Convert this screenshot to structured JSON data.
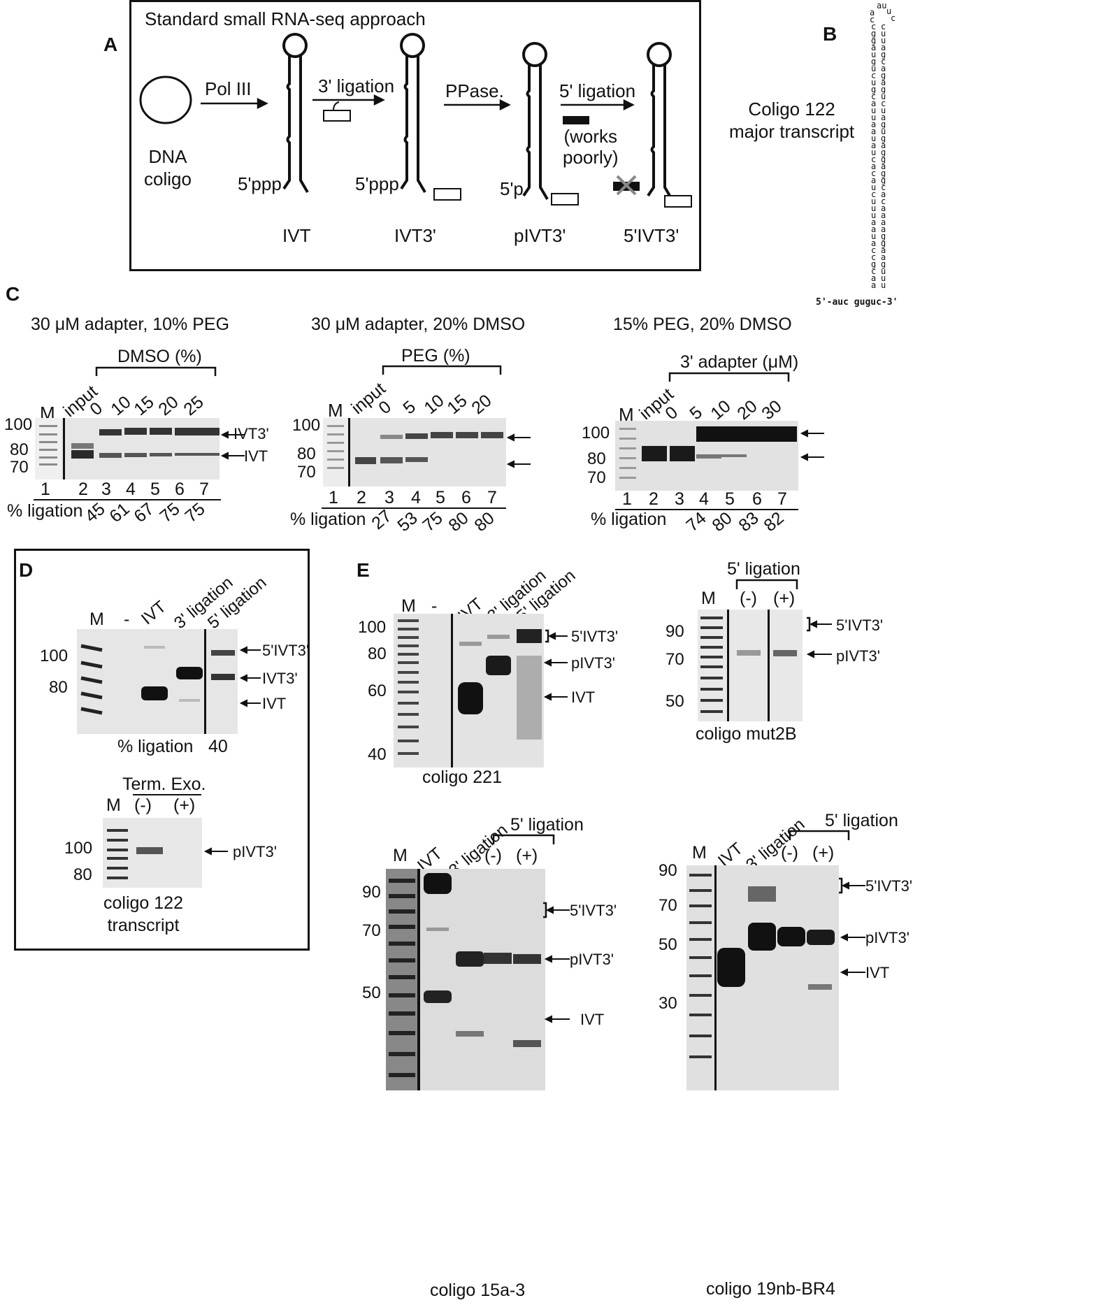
{
  "panelA": {
    "letter": "A",
    "title": "Standard small RNA-seq approach",
    "dna_coligo": "DNA\ncoligo",
    "pol3": "Pol III",
    "lig3": "3' ligation",
    "ppase": "PPase.",
    "lig5": "5' ligation",
    "works_poorly": "(works\npoorly)",
    "ppp1": "5'ppp",
    "ppp2": "5'ppp",
    "p3": "5'p",
    "labels": [
      "IVT",
      "IVT3'",
      "pIVT3'",
      "5'IVT3'"
    ]
  },
  "panelB": {
    "letter": "B",
    "title": "Coligo 122\nmajor transcript",
    "seq_bottom": "5'-auc guguc-3'"
  },
  "panelC": {
    "letter": "C",
    "gels": [
      {
        "title": "30 μM adapter, 10% PEG",
        "bracket": "DMSO (%)",
        "lanes_top": [
          "M",
          "input",
          "0",
          "10",
          "15",
          "20",
          "25"
        ],
        "markers": [
          "100",
          "80",
          "70"
        ],
        "lane_nums": [
          "1",
          "2",
          "3",
          "4",
          "5",
          "6",
          "7"
        ],
        "pct_label": "% ligation",
        "pct": [
          "45",
          "61",
          "67",
          "75",
          "75"
        ],
        "arrows": [
          "IVT3'",
          "IVT"
        ]
      },
      {
        "title": "30 μM adapter, 20% DMSO",
        "bracket": "PEG (%)",
        "lanes_top": [
          "M",
          "input",
          "0",
          "5",
          "10",
          "15",
          "20"
        ],
        "markers": [
          "100",
          "80",
          "70"
        ],
        "lane_nums": [
          "1",
          "2",
          "3",
          "4",
          "5",
          "6",
          "7"
        ],
        "pct_label": "% ligation",
        "pct": [
          "27",
          "53",
          "75",
          "80",
          "80"
        ]
      },
      {
        "title": "15% PEG, 20% DMSO",
        "bracket": "3' adapter (μM)",
        "lanes_top": [
          "M",
          "input",
          "0",
          "5",
          "10",
          "20",
          "30"
        ],
        "markers": [
          "100",
          "80",
          "70"
        ],
        "lane_nums": [
          "1",
          "2",
          "3",
          "4",
          "5",
          "6",
          "7"
        ],
        "pct_label": "% ligation",
        "pct": [
          "74",
          "80",
          "83",
          "82"
        ]
      }
    ]
  },
  "panelD": {
    "letter": "D",
    "lanes": [
      "M",
      "-",
      "IVT",
      "3' ligation",
      "5' ligation"
    ],
    "markers": [
      "100",
      "80"
    ],
    "arrows": [
      "5'IVT3'",
      "IVT3'",
      "IVT"
    ],
    "pct_label": "% ligation",
    "pct": "40",
    "exo_title": "Term. Exo.",
    "exo_lanes": [
      "M",
      "(-)",
      "(+)"
    ],
    "exo_markers": [
      "100",
      "80"
    ],
    "exo_arrow": "pIVT3'",
    "caption": "coligo 122\ntranscript"
  },
  "panelE": {
    "letter": "E",
    "gel221": {
      "lanes": [
        "M",
        "-",
        "IVT",
        "3' ligation",
        "5' ligation"
      ],
      "markers": [
        "100",
        "80",
        "60",
        "40"
      ],
      "arrows": [
        "5'IVT3'",
        "pIVT3'",
        "IVT"
      ],
      "caption": "coligo 221"
    },
    "gelmut": {
      "title": "5' ligation",
      "lanes": [
        "M",
        "(-)",
        "(+)"
      ],
      "markers": [
        "90",
        "70",
        "50"
      ],
      "arrows": [
        "5'IVT3'",
        "pIVT3'"
      ],
      "caption": "coligo mut2B"
    },
    "gel15a": {
      "title": "5' ligation",
      "lanes": [
        "M",
        "IVT",
        "3' ligation",
        "(-)",
        "(+)"
      ],
      "markers": [
        "90",
        "70",
        "50"
      ],
      "arrows": [
        "5'IVT3'",
        "pIVT3'",
        "IVT"
      ],
      "caption": "coligo 15a-3"
    },
    "gel19": {
      "title": "5' ligation",
      "lanes": [
        "M",
        "IVT",
        "3' ligation",
        "(-)",
        "(+)"
      ],
      "markers": [
        "90",
        "70",
        "50",
        "30"
      ],
      "arrows": [
        "5'IVT3'",
        "pIVT3'",
        "IVT"
      ],
      "caption": "coligo 19nb-BR4"
    }
  }
}
